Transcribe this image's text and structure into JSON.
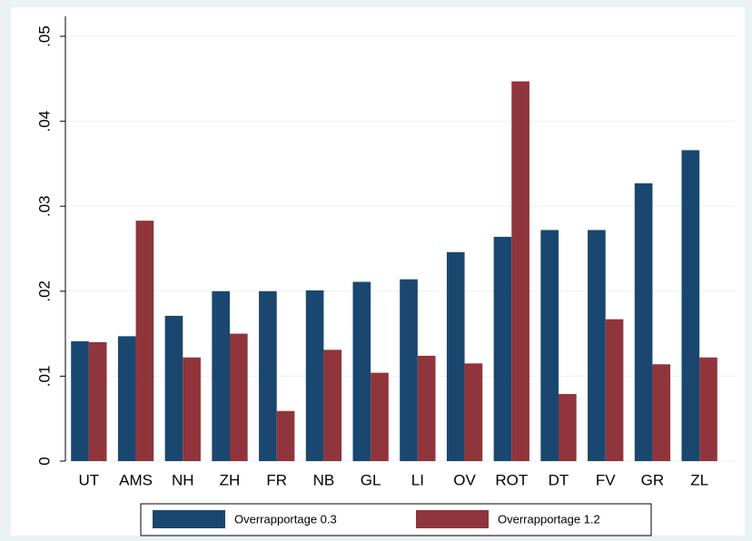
{
  "chart_data": {
    "type": "bar",
    "categories": [
      "UT",
      "AMS",
      "NH",
      "ZH",
      "FR",
      "NB",
      "GL",
      "LI",
      "OV",
      "ROT",
      "DT",
      "FV",
      "GR",
      "ZL"
    ],
    "series": [
      {
        "name": "Overrapportage 0.3",
        "color": "#1a476f",
        "values": [
          0.0141,
          0.0147,
          0.0171,
          0.02,
          0.02,
          0.0201,
          0.0211,
          0.0214,
          0.0246,
          0.0264,
          0.0272,
          0.0272,
          0.0327,
          0.0366
        ]
      },
      {
        "name": "Overrapportage 1.2",
        "color": "#90353b",
        "values": [
          0.014,
          0.0283,
          0.0122,
          0.015,
          0.0059,
          0.0131,
          0.0104,
          0.0124,
          0.0115,
          0.0447,
          0.0079,
          0.0167,
          0.0114,
          0.0122
        ]
      }
    ],
    "ylim": [
      0,
      0.05
    ],
    "yticks": [
      0,
      {
        "value": 0.01,
        "label": ".01"
      },
      {
        "value": 0.02,
        "label": ".02"
      },
      {
        "value": 0.03,
        "label": ".03"
      },
      {
        "value": 0.04,
        "label": ".04"
      },
      {
        "value": 0.05,
        "label": ".05"
      }
    ],
    "grid": true,
    "legend": "bottom"
  }
}
